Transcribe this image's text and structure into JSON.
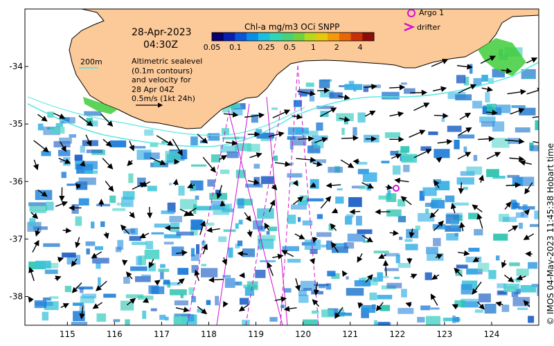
{
  "header": {
    "date": "28-Apr-2023",
    "time": "04:30Z"
  },
  "colorbar": {
    "title": "Chl-a mg/m3 OCi SNPP",
    "ticks": [
      "0.05",
      "0.1",
      "0.25",
      "0.5",
      "1",
      "2",
      "4"
    ],
    "colors": [
      "#08006b",
      "#0a1fb0",
      "#0b56d8",
      "#0a8fe6",
      "#18c1e0",
      "#2fd6b2",
      "#46d17a",
      "#6fd23c",
      "#b9d81c",
      "#e8c80f",
      "#f39a0c",
      "#e8660b",
      "#c9300a",
      "#8f0c08"
    ]
  },
  "legend": {
    "isobath_label": "200m",
    "isobath_color": "#5ce8e4",
    "altimetry_text": [
      "Altimetric sealevel",
      "(0.1m contours)",
      "and velocity for",
      "28 Apr 04Z",
      "0.5m/s (1kt 24h)"
    ],
    "argo_label": "Argo 1",
    "drifter_label": "drifter",
    "marker_color": "#d10fd1"
  },
  "axes": {
    "x_ticks": [
      "115",
      "116",
      "117",
      "118",
      "119",
      "120",
      "121",
      "122",
      "123",
      "124"
    ],
    "y_ticks": [
      "-34",
      "-35",
      "-36",
      "-37",
      "-38"
    ],
    "xlim": [
      114.1,
      125.0
    ],
    "ylim": [
      -38.5,
      -33.0
    ]
  },
  "colors": {
    "land": "#fcc998",
    "ocean": "#ffffff",
    "contour": "#5ce8e4",
    "track": "#d10fd1"
  },
  "credit": "© IMOS 04-May-2023 11:45:38 Hobart time"
}
